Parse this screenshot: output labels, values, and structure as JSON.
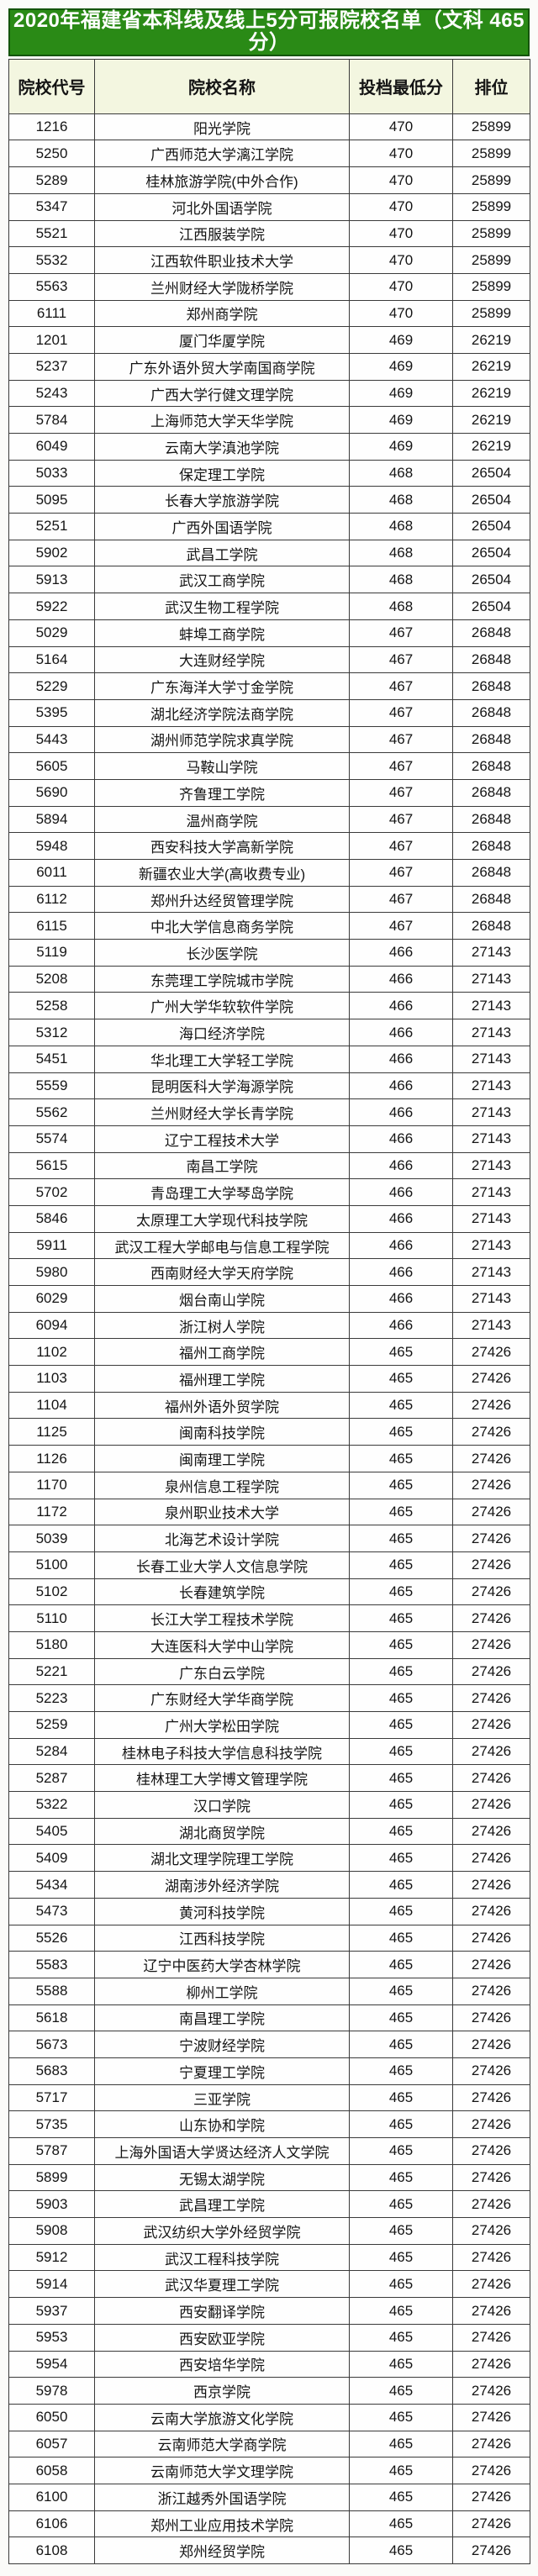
{
  "title": "2020年福建省本科线及线上5分可报院校名单（文科 465分）",
  "table": {
    "columns": [
      "院校代号",
      "院校名称",
      "投档最低分",
      "排位"
    ],
    "rows": [
      [
        "1216",
        "阳光学院",
        "470",
        "25899"
      ],
      [
        "5250",
        "广西师范大学漓江学院",
        "470",
        "25899"
      ],
      [
        "5289",
        "桂林旅游学院(中外合作)",
        "470",
        "25899"
      ],
      [
        "5347",
        "河北外国语学院",
        "470",
        "25899"
      ],
      [
        "5521",
        "江西服装学院",
        "470",
        "25899"
      ],
      [
        "5532",
        "江西软件职业技术大学",
        "470",
        "25899"
      ],
      [
        "5563",
        "兰州财经大学陇桥学院",
        "470",
        "25899"
      ],
      [
        "6111",
        "郑州商学院",
        "470",
        "25899"
      ],
      [
        "1201",
        "厦门华厦学院",
        "469",
        "26219"
      ],
      [
        "5237",
        "广东外语外贸大学南国商学院",
        "469",
        "26219"
      ],
      [
        "5243",
        "广西大学行健文理学院",
        "469",
        "26219"
      ],
      [
        "5784",
        "上海师范大学天华学院",
        "469",
        "26219"
      ],
      [
        "6049",
        "云南大学滇池学院",
        "469",
        "26219"
      ],
      [
        "5033",
        "保定理工学院",
        "468",
        "26504"
      ],
      [
        "5095",
        "长春大学旅游学院",
        "468",
        "26504"
      ],
      [
        "5251",
        "广西外国语学院",
        "468",
        "26504"
      ],
      [
        "5902",
        "武昌工学院",
        "468",
        "26504"
      ],
      [
        "5913",
        "武汉工商学院",
        "468",
        "26504"
      ],
      [
        "5922",
        "武汉生物工程学院",
        "468",
        "26504"
      ],
      [
        "5029",
        "蚌埠工商学院",
        "467",
        "26848"
      ],
      [
        "5164",
        "大连财经学院",
        "467",
        "26848"
      ],
      [
        "5229",
        "广东海洋大学寸金学院",
        "467",
        "26848"
      ],
      [
        "5395",
        "湖北经济学院法商学院",
        "467",
        "26848"
      ],
      [
        "5443",
        "湖州师范学院求真学院",
        "467",
        "26848"
      ],
      [
        "5605",
        "马鞍山学院",
        "467",
        "26848"
      ],
      [
        "5690",
        "齐鲁理工学院",
        "467",
        "26848"
      ],
      [
        "5894",
        "温州商学院",
        "467",
        "26848"
      ],
      [
        "5948",
        "西安科技大学高新学院",
        "467",
        "26848"
      ],
      [
        "6011",
        "新疆农业大学(高收费专业)",
        "467",
        "26848"
      ],
      [
        "6112",
        "郑州升达经贸管理学院",
        "467",
        "26848"
      ],
      [
        "6115",
        "中北大学信息商务学院",
        "467",
        "26848"
      ],
      [
        "5119",
        "长沙医学院",
        "466",
        "27143"
      ],
      [
        "5208",
        "东莞理工学院城市学院",
        "466",
        "27143"
      ],
      [
        "5258",
        "广州大学华软软件学院",
        "466",
        "27143"
      ],
      [
        "5312",
        "海口经济学院",
        "466",
        "27143"
      ],
      [
        "5451",
        "华北理工大学轻工学院",
        "466",
        "27143"
      ],
      [
        "5559",
        "昆明医科大学海源学院",
        "466",
        "27143"
      ],
      [
        "5562",
        "兰州财经大学长青学院",
        "466",
        "27143"
      ],
      [
        "5574",
        "辽宁工程技术大学",
        "466",
        "27143"
      ],
      [
        "5615",
        "南昌工学院",
        "466",
        "27143"
      ],
      [
        "5702",
        "青岛理工大学琴岛学院",
        "466",
        "27143"
      ],
      [
        "5846",
        "太原理工大学现代科技学院",
        "466",
        "27143"
      ],
      [
        "5911",
        "武汉工程大学邮电与信息工程学院",
        "466",
        "27143"
      ],
      [
        "5980",
        "西南财经大学天府学院",
        "466",
        "27143"
      ],
      [
        "6029",
        "烟台南山学院",
        "466",
        "27143"
      ],
      [
        "6094",
        "浙江树人学院",
        "466",
        "27143"
      ],
      [
        "1102",
        "福州工商学院",
        "465",
        "27426"
      ],
      [
        "1103",
        "福州理工学院",
        "465",
        "27426"
      ],
      [
        "1104",
        "福州外语外贸学院",
        "465",
        "27426"
      ],
      [
        "1125",
        "闽南科技学院",
        "465",
        "27426"
      ],
      [
        "1126",
        "闽南理工学院",
        "465",
        "27426"
      ],
      [
        "1170",
        "泉州信息工程学院",
        "465",
        "27426"
      ],
      [
        "1172",
        "泉州职业技术大学",
        "465",
        "27426"
      ],
      [
        "5039",
        "北海艺术设计学院",
        "465",
        "27426"
      ],
      [
        "5100",
        "长春工业大学人文信息学院",
        "465",
        "27426"
      ],
      [
        "5102",
        "长春建筑学院",
        "465",
        "27426"
      ],
      [
        "5110",
        "长江大学工程技术学院",
        "465",
        "27426"
      ],
      [
        "5180",
        "大连医科大学中山学院",
        "465",
        "27426"
      ],
      [
        "5221",
        "广东白云学院",
        "465",
        "27426"
      ],
      [
        "5223",
        "广东财经大学华商学院",
        "465",
        "27426"
      ],
      [
        "5259",
        "广州大学松田学院",
        "465",
        "27426"
      ],
      [
        "5284",
        "桂林电子科技大学信息科技学院",
        "465",
        "27426"
      ],
      [
        "5287",
        "桂林理工大学博文管理学院",
        "465",
        "27426"
      ],
      [
        "5322",
        "汉口学院",
        "465",
        "27426"
      ],
      [
        "5405",
        "湖北商贸学院",
        "465",
        "27426"
      ],
      [
        "5409",
        "湖北文理学院理工学院",
        "465",
        "27426"
      ],
      [
        "5434",
        "湖南涉外经济学院",
        "465",
        "27426"
      ],
      [
        "5473",
        "黄河科技学院",
        "465",
        "27426"
      ],
      [
        "5526",
        "江西科技学院",
        "465",
        "27426"
      ],
      [
        "5583",
        "辽宁中医药大学杏林学院",
        "465",
        "27426"
      ],
      [
        "5588",
        "柳州工学院",
        "465",
        "27426"
      ],
      [
        "5618",
        "南昌理工学院",
        "465",
        "27426"
      ],
      [
        "5673",
        "宁波财经学院",
        "465",
        "27426"
      ],
      [
        "5683",
        "宁夏理工学院",
        "465",
        "27426"
      ],
      [
        "5717",
        "三亚学院",
        "465",
        "27426"
      ],
      [
        "5735",
        "山东协和学院",
        "465",
        "27426"
      ],
      [
        "5787",
        "上海外国语大学贤达经济人文学院",
        "465",
        "27426"
      ],
      [
        "5899",
        "无锡太湖学院",
        "465",
        "27426"
      ],
      [
        "5903",
        "武昌理工学院",
        "465",
        "27426"
      ],
      [
        "5908",
        "武汉纺织大学外经贸学院",
        "465",
        "27426"
      ],
      [
        "5912",
        "武汉工程科技学院",
        "465",
        "27426"
      ],
      [
        "5914",
        "武汉华夏理工学院",
        "465",
        "27426"
      ],
      [
        "5937",
        "西安翻译学院",
        "465",
        "27426"
      ],
      [
        "5953",
        "西安欧亚学院",
        "465",
        "27426"
      ],
      [
        "5954",
        "西安培华学院",
        "465",
        "27426"
      ],
      [
        "5978",
        "西京学院",
        "465",
        "27426"
      ],
      [
        "6050",
        "云南大学旅游文化学院",
        "465",
        "27426"
      ],
      [
        "6057",
        "云南师范大学商学院",
        "465",
        "27426"
      ],
      [
        "6058",
        "云南师范大学文理学院",
        "465",
        "27426"
      ],
      [
        "6100",
        "浙江越秀外国语学院",
        "465",
        "27426"
      ],
      [
        "6106",
        "郑州工业应用技术学院",
        "465",
        "27426"
      ],
      [
        "6108",
        "郑州经贸学院",
        "465",
        "27426"
      ]
    ]
  },
  "colors": {
    "title_bg": "#2a8a16",
    "title_border": "#14540c",
    "title_text": "#ffffff",
    "header_bg": "#f3f6e0",
    "border": "#3a3a3a",
    "cell_bg": "#fefefe",
    "text": "#141414"
  }
}
